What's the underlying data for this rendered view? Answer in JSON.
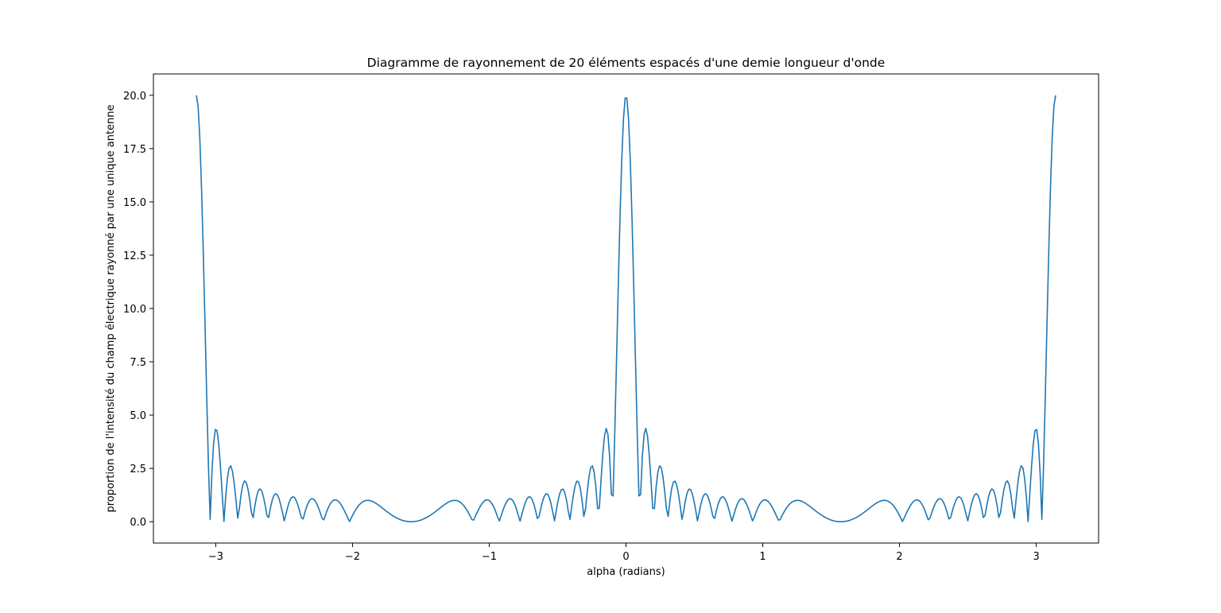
{
  "chart_data": {
    "type": "line",
    "title": "Diagramme de rayonnement de 20 éléments espacés d'une demie longueur d'onde",
    "xlabel": "alpha (radians)",
    "ylabel": "proportion de l'intensité du champ électrique rayonné par une unique antenne",
    "xlim": [
      -3.4557,
      3.4557
    ],
    "ylim": [
      -1.0,
      21.0
    ],
    "xticks": [
      -3,
      -2,
      -1,
      0,
      1,
      2,
      3
    ],
    "xtick_labels": [
      "−3",
      "−2",
      "−1",
      "0",
      "1",
      "2",
      "3"
    ],
    "yticks": [
      0.0,
      2.5,
      5.0,
      7.5,
      10.0,
      12.5,
      15.0,
      17.5,
      20.0
    ],
    "ytick_labels": [
      "0.0",
      "2.5",
      "5.0",
      "7.5",
      "10.0",
      "12.5",
      "15.0",
      "17.5",
      "20.0"
    ],
    "grid": false,
    "legend": "none",
    "series": [
      {
        "color": "#1f77b4",
        "n_elements": 20,
        "spacing_wavelengths": 0.5,
        "x_range": [
          -3.1416,
          3.1416
        ],
        "x_points": 500
      }
    ]
  }
}
